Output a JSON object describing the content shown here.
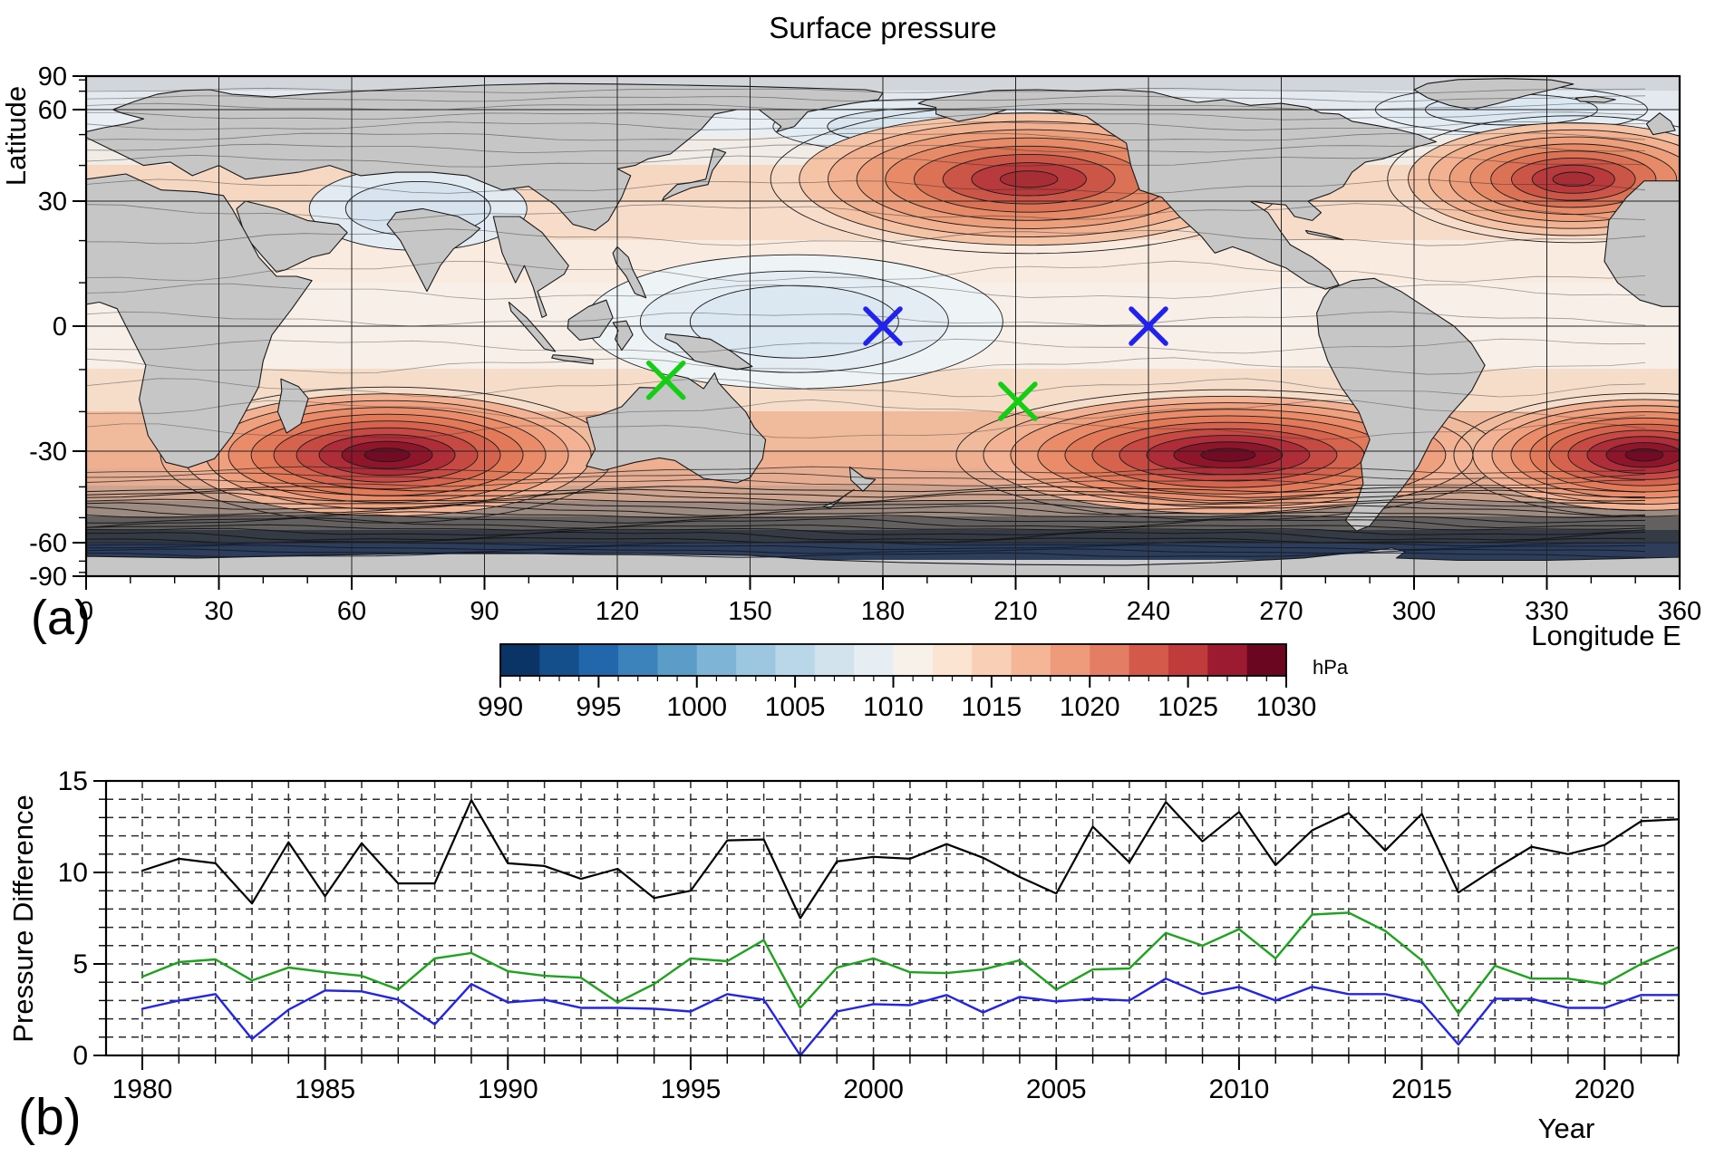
{
  "figure": {
    "panel_a_label": "(a)",
    "panel_b_label": "(b)"
  },
  "chart_data": [
    {
      "type": "heatmap",
      "title": "Surface pressure",
      "xlabel": "Longitude E",
      "ylabel": "Latitude",
      "xlim": [
        0,
        360
      ],
      "ylim": [
        -90,
        90
      ],
      "x_ticks": [
        0,
        30,
        60,
        90,
        120,
        150,
        180,
        210,
        240,
        270,
        300,
        330,
        360
      ],
      "x_minor_tick_step_deg": 10,
      "y_ticks": [
        90,
        60,
        30,
        0,
        -30,
        -60,
        -90
      ],
      "y_minor_tick_step_deg": 10,
      "y_scale": "sin-latitude equal-area",
      "grid": "solid graticule every 30 degrees",
      "land_color": "gray mask with black coastlines",
      "colorbar": {
        "unit": "hPa",
        "min": 990,
        "max": 1030,
        "labeled_ticks": [
          990,
          995,
          1000,
          1005,
          1010,
          1015,
          1020,
          1025,
          1030
        ],
        "minor_tick_step": 1,
        "segment_step_hPa": 2,
        "segment_colors": [
          "#0b3466",
          "#154f8b",
          "#2267ac",
          "#3d83bb",
          "#5b9dc8",
          "#7eb4d5",
          "#9dc7e0",
          "#b9d7e9",
          "#d2e3ee",
          "#e6eef3",
          "#f8f1ea",
          "#fbe4d2",
          "#f9cfb5",
          "#f5b697",
          "#ee9b7c",
          "#e37e64",
          "#d35a4b",
          "#c03b3c",
          "#9c1b30",
          "#6b0620"
        ]
      },
      "pressure_centers": [
        {
          "name": "south-indian-ocean-high",
          "lon": 68,
          "lat": -31,
          "value_hPa": 1027
        },
        {
          "name": "south-pacific-high",
          "lon": 258,
          "lat": -31,
          "value_hPa": 1026
        },
        {
          "name": "south-atlantic-high",
          "lon": 352,
          "lat": -31,
          "value_hPa": 1027
        },
        {
          "name": "north-pacific-high",
          "lon": 213,
          "lat": 36,
          "value_hPa": 1024
        },
        {
          "name": "north-atlantic-high",
          "lon": 336,
          "lat": 36,
          "value_hPa": 1024
        },
        {
          "name": "circumpolar-trough",
          "lon": 180,
          "lat": -62,
          "value_hPa": 989
        },
        {
          "name": "west-pacific-equatorial-low",
          "lon": 160,
          "lat": 1,
          "value_hPa": 1008
        },
        {
          "name": "south-asia-low",
          "lon": 75,
          "lat": 28,
          "value_hPa": 1006
        }
      ],
      "markers": [
        {
          "id": "green-x-west",
          "shape": "x",
          "color": "#13ce13",
          "lon": 131,
          "lat": -12.5
        },
        {
          "id": "green-x-east",
          "shape": "x",
          "color": "#13ce13",
          "lon": 210.5,
          "lat": -17.5
        },
        {
          "id": "blue-x-west",
          "shape": "x",
          "color": "#2222ee",
          "lon": 180,
          "lat": 0
        },
        {
          "id": "blue-x-east",
          "shape": "x",
          "color": "#2222ee",
          "lon": 240,
          "lat": 0
        }
      ]
    },
    {
      "type": "line",
      "title": "",
      "xlabel": "Year",
      "ylabel": "Pressure Difference",
      "xlim": [
        1979,
        2022.3
      ],
      "ylim": [
        0,
        15
      ],
      "x_ticks_labeled": [
        1980,
        1985,
        1990,
        1995,
        2000,
        2005,
        2010,
        2015,
        2020
      ],
      "x_minor_tick_step": 1,
      "y_ticks_labeled": [
        0,
        5,
        10,
        15
      ],
      "y_minor_tick_step": 1,
      "grid": "dashed vertical line every year, dashed horizontal line every 1 hPa",
      "legend": "none",
      "x": [
        1980,
        1981,
        1982,
        1983,
        1984,
        1985,
        1986,
        1987,
        1988,
        1989,
        1990,
        1991,
        1992,
        1993,
        1994,
        1995,
        1996,
        1997,
        1998,
        1999,
        2000,
        2001,
        2002,
        2003,
        2004,
        2005,
        2006,
        2007,
        2008,
        2009,
        2010,
        2011,
        2012,
        2013,
        2014,
        2015,
        2016,
        2017,
        2018,
        2019,
        2020,
        2021,
        2022
      ],
      "series": [
        {
          "name": "black",
          "color": "#000000",
          "values": [
            10.1,
            10.75,
            10.5,
            8.3,
            11.65,
            8.7,
            11.6,
            9.4,
            9.4,
            13.95,
            10.5,
            10.35,
            9.65,
            10.2,
            8.6,
            9.0,
            11.75,
            11.8,
            7.5,
            10.6,
            10.85,
            10.75,
            11.55,
            10.8,
            9.75,
            8.85,
            12.5,
            10.55,
            13.85,
            11.7,
            13.3,
            10.4,
            12.3,
            13.25,
            11.2,
            13.2,
            8.9,
            10.2,
            11.4,
            11.0,
            11.5,
            12.8,
            12.9
          ]
        },
        {
          "name": "green",
          "color": "#1ca41c",
          "values": [
            4.3,
            5.1,
            5.25,
            4.1,
            4.8,
            4.55,
            4.35,
            3.6,
            5.3,
            5.6,
            4.6,
            4.35,
            4.25,
            2.9,
            3.9,
            5.3,
            5.15,
            6.3,
            2.6,
            4.8,
            5.3,
            4.55,
            4.5,
            4.7,
            5.2,
            3.6,
            4.7,
            4.75,
            6.7,
            6.0,
            6.9,
            5.3,
            7.7,
            7.8,
            6.8,
            5.2,
            2.3,
            4.9,
            4.2,
            4.2,
            3.9,
            5.0,
            5.9
          ]
        },
        {
          "name": "blue",
          "color": "#2424e8",
          "values": [
            2.55,
            3.0,
            3.35,
            0.9,
            2.5,
            3.55,
            3.5,
            3.05,
            1.7,
            3.9,
            2.9,
            3.05,
            2.6,
            2.6,
            2.55,
            2.4,
            3.35,
            3.05,
            0.0,
            2.4,
            2.8,
            2.75,
            3.3,
            2.35,
            3.2,
            2.95,
            3.1,
            3.0,
            4.2,
            3.35,
            3.75,
            3.0,
            3.75,
            3.35,
            3.35,
            2.9,
            0.6,
            3.1,
            3.1,
            2.6,
            2.6,
            3.3,
            3.3
          ]
        }
      ]
    }
  ]
}
